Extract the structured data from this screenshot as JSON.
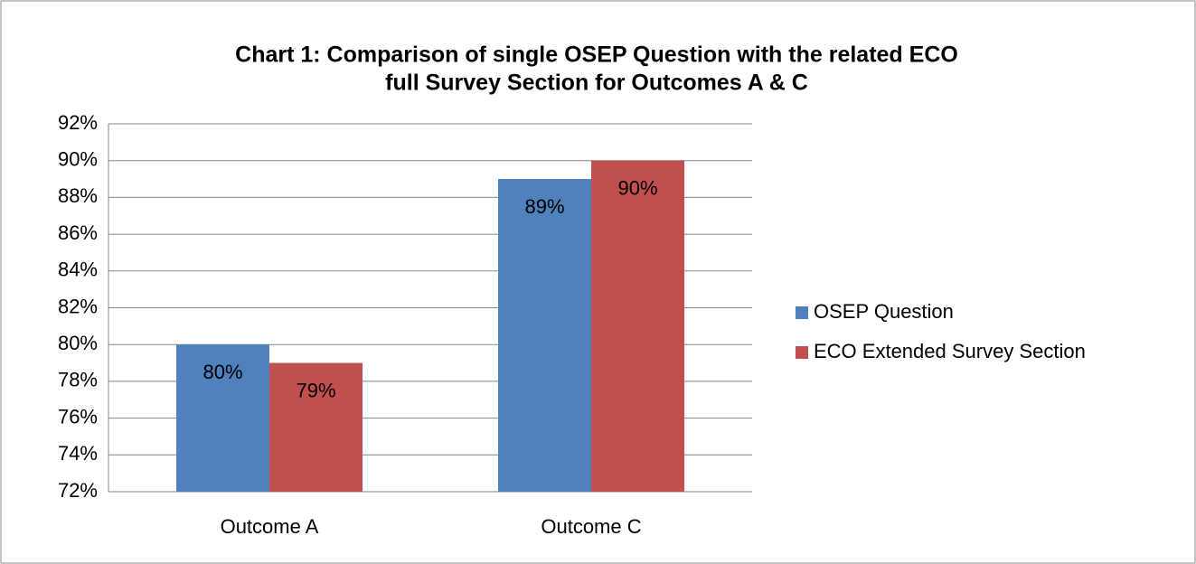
{
  "chart_data": {
    "type": "bar",
    "title": [
      "Chart 1: Comparison of single OSEP Question with the related ECO",
      "full Survey Section for Outcomes A & C"
    ],
    "categories": [
      "Outcome A",
      "Outcome C"
    ],
    "series": [
      {
        "name": "OSEP Question",
        "color": "#4f81bd",
        "values": [
          80,
          89
        ],
        "value_labels": [
          "80%",
          "89%"
        ]
      },
      {
        "name": "ECO Extended Survey Section",
        "color": "#c0504d",
        "values": [
          79,
          90
        ],
        "value_labels": [
          "79%",
          "90%"
        ]
      }
    ],
    "ylim": [
      72,
      92
    ],
    "yticks": [
      {
        "value": 72,
        "label": "72%"
      },
      {
        "value": 74,
        "label": "74%"
      },
      {
        "value": 76,
        "label": "76%"
      },
      {
        "value": 78,
        "label": "78%"
      },
      {
        "value": 80,
        "label": "80%"
      },
      {
        "value": 82,
        "label": "82%"
      },
      {
        "value": 84,
        "label": "84%"
      },
      {
        "value": 86,
        "label": "86%"
      },
      {
        "value": 88,
        "label": "88%"
      },
      {
        "value": 90,
        "label": "90%"
      },
      {
        "value": 92,
        "label": "92%"
      }
    ],
    "grid": true,
    "legend": "right"
  }
}
